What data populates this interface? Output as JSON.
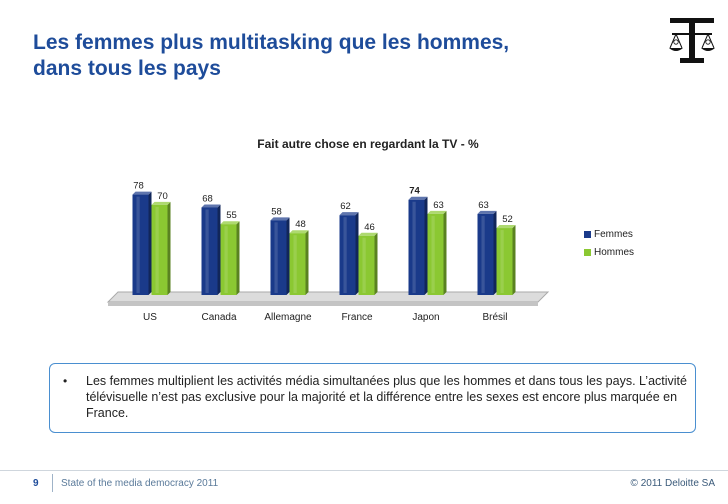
{
  "slide": {
    "title_line1": "Les femmes plus multitasking que les hommes,",
    "title_line2": "dans tous les pays"
  },
  "chart_data": {
    "type": "bar",
    "title": "Fait autre chose en regardant  la TV - %",
    "categories": [
      "US",
      "Canada",
      "Allemagne",
      "France",
      "Japon",
      "Brésil"
    ],
    "series": [
      {
        "name": "Femmes",
        "values": [
          78,
          68,
          58,
          62,
          74,
          63
        ],
        "color": "#1a3a8a"
      },
      {
        "name": "Hommes",
        "values": [
          70,
          55,
          48,
          46,
          63,
          52
        ],
        "color": "#8bc832"
      }
    ],
    "ylim": [
      0,
      80
    ],
    "legend": "right",
    "grid": false,
    "three_d": true
  },
  "note": {
    "bullet": "•",
    "text": "Les femmes multiplient les activités média simultanées plus que les hommes et dans tous les pays. L’activité télévisuelle n’est pas exclusive pour la majorité et la différence entre les sexes est encore plus marquée en France."
  },
  "footer": {
    "page_number": "9",
    "left_text": "State of the media democracy 2011",
    "right_text": "© 2011 Deloitte SA"
  },
  "colors": {
    "title": "#1e4c9a",
    "femmes": "#1a3a8a",
    "hommes": "#8bc832",
    "note_border": "#4a8fd0"
  },
  "icons": {
    "logo": "scales-of-justice-gender-icon"
  }
}
